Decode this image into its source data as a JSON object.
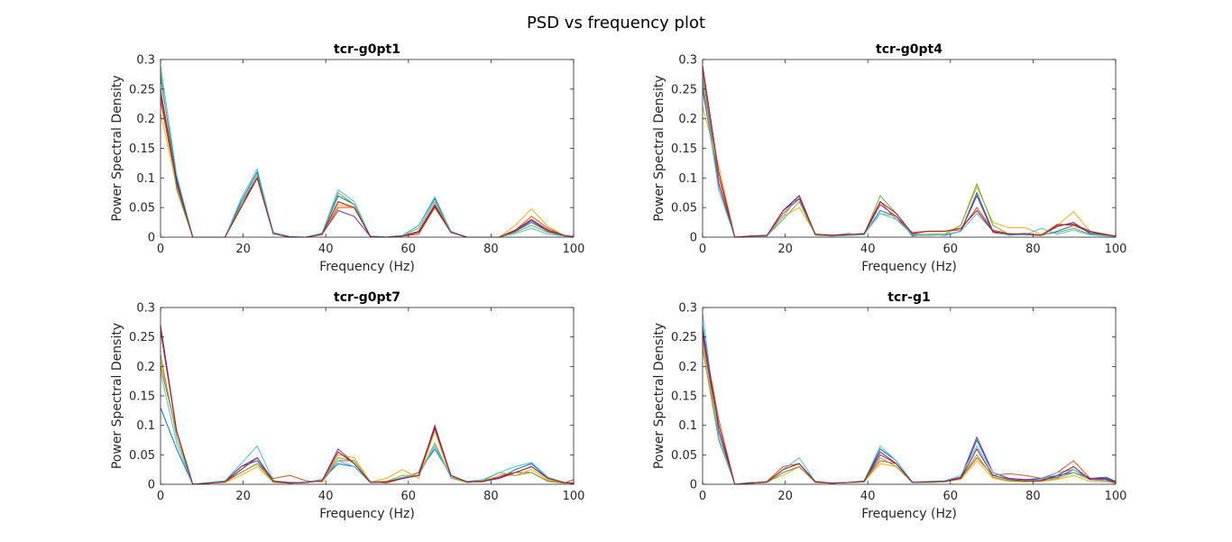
{
  "figure": {
    "title": "PSD vs frequency plot"
  },
  "colors": [
    "#0072BD",
    "#D95319",
    "#EDB120",
    "#7E2F8E",
    "#77AC30",
    "#4DBEEE",
    "#A2142F"
  ],
  "chart_data": [
    {
      "type": "line",
      "title": "tcr-g0pt1",
      "xlabel": "Frequency (Hz)",
      "ylabel": "Power Spectral Density",
      "xlim": [
        0,
        100
      ],
      "ylim": [
        0,
        0.3
      ],
      "xticks": [
        0,
        20,
        40,
        60,
        80,
        100
      ],
      "yticks": [
        0,
        0.05,
        0.1,
        0.15,
        0.2,
        0.25,
        0.3
      ],
      "yticklabels": [
        "0",
        "0.05",
        "0.1",
        "0.15",
        "0.2",
        "0.25",
        "0.3"
      ],
      "grid": false,
      "x": [
        0,
        3.9,
        7.8,
        11.7,
        15.6,
        19.5,
        23.4,
        27.3,
        31.3,
        35.2,
        39.1,
        43.0,
        46.9,
        50.8,
        54.7,
        58.6,
        62.5,
        66.4,
        70.3,
        74.2,
        78.1,
        82.0,
        85.9,
        89.8,
        93.8,
        97.7,
        100
      ],
      "series": [
        {
          "values": [
            0.27,
            0.1,
            0.0,
            0.0,
            0.0,
            0.06,
            0.11,
            0.008,
            0.001,
            0.0,
            0.006,
            0.07,
            0.055,
            0.002,
            0.0,
            0.003,
            0.02,
            0.065,
            0.01,
            0.0,
            0.0,
            0.0,
            0.01,
            0.025,
            0.01,
            0.002,
            0.001
          ]
        },
        {
          "values": [
            0.23,
            0.09,
            0.0,
            0.0,
            0.0,
            0.05,
            0.1,
            0.006,
            0.0,
            0.0,
            0.005,
            0.05,
            0.05,
            0.001,
            0.0,
            0.002,
            0.005,
            0.05,
            0.008,
            0.0,
            0.0,
            0.0,
            0.012,
            0.035,
            0.015,
            0.003,
            0.001
          ]
        },
        {
          "values": [
            0.21,
            0.085,
            0.0,
            0.0,
            0.0,
            0.055,
            0.1,
            0.006,
            0.0,
            0.0,
            0.004,
            0.055,
            0.05,
            0.001,
            0.0,
            0.002,
            0.01,
            0.055,
            0.008,
            0.0,
            0.0,
            0.0,
            0.02,
            0.048,
            0.018,
            0.003,
            0.001
          ]
        },
        {
          "values": [
            0.25,
            0.09,
            0.0,
            0.0,
            0.0,
            0.055,
            0.1,
            0.007,
            0.0,
            0.0,
            0.005,
            0.045,
            0.035,
            0.001,
            0.0,
            0.002,
            0.01,
            0.055,
            0.008,
            0.0,
            0.0,
            0.0,
            0.01,
            0.028,
            0.01,
            0.002,
            0.001
          ]
        },
        {
          "values": [
            0.28,
            0.08,
            0.0,
            0.0,
            0.0,
            0.055,
            0.105,
            0.007,
            0.0,
            0.0,
            0.006,
            0.075,
            0.055,
            0.001,
            0.0,
            0.003,
            0.015,
            0.06,
            0.01,
            0.0,
            0.0,
            0.0,
            0.008,
            0.02,
            0.008,
            0.002,
            0.001
          ]
        },
        {
          "values": [
            0.29,
            0.105,
            0.0,
            0.0,
            0.0,
            0.065,
            0.115,
            0.008,
            0.0,
            0.0,
            0.007,
            0.08,
            0.06,
            0.002,
            0.0,
            0.003,
            0.02,
            0.068,
            0.01,
            0.0,
            0.0,
            0.0,
            0.006,
            0.015,
            0.005,
            0.002,
            0.001
          ]
        },
        {
          "values": [
            0.24,
            0.095,
            0.0,
            0.0,
            0.0,
            0.05,
            0.1,
            0.006,
            0.0,
            0.0,
            0.005,
            0.06,
            0.05,
            0.001,
            0.0,
            0.002,
            0.008,
            0.052,
            0.008,
            0.0,
            0.0,
            0.0,
            0.012,
            0.03,
            0.012,
            0.003,
            0.001
          ]
        }
      ]
    },
    {
      "type": "line",
      "title": "tcr-g0pt4",
      "xlabel": "Frequency (Hz)",
      "ylabel": "Power Spectral Density",
      "xlim": [
        0,
        100
      ],
      "ylim": [
        0,
        0.3
      ],
      "xticks": [
        0,
        20,
        40,
        60,
        80,
        100
      ],
      "yticks": [
        0,
        0.05,
        0.1,
        0.15,
        0.2,
        0.25,
        0.3
      ],
      "yticklabels": [
        "0",
        "0.05",
        "0.1",
        "0.15",
        "0.2",
        "0.25",
        "0.3"
      ],
      "grid": false,
      "x": [
        0,
        3.9,
        7.8,
        11.7,
        15.6,
        19.5,
        23.4,
        27.3,
        31.3,
        35.2,
        39.1,
        43.0,
        46.9,
        50.8,
        54.7,
        58.6,
        62.5,
        66.4,
        70.3,
        74.2,
        78.1,
        82.0,
        85.9,
        89.8,
        93.8,
        97.7,
        100
      ],
      "series": [
        {
          "values": [
            0.27,
            0.09,
            0.0,
            0.002,
            0.002,
            0.045,
            0.07,
            0.004,
            0.003,
            0.006,
            0.004,
            0.045,
            0.035,
            0.002,
            0.005,
            0.003,
            0.01,
            0.075,
            0.01,
            0.005,
            0.006,
            0.003,
            0.01,
            0.02,
            0.008,
            0.004,
            0.002
          ]
        },
        {
          "values": [
            0.28,
            0.1,
            0.0,
            0.002,
            0.003,
            0.04,
            0.065,
            0.005,
            0.004,
            0.004,
            0.005,
            0.06,
            0.03,
            0.008,
            0.01,
            0.01,
            0.012,
            0.05,
            0.012,
            0.006,
            0.005,
            0.004,
            0.022,
            0.02,
            0.01,
            0.005,
            0.002
          ]
        },
        {
          "values": [
            0.22,
            0.12,
            0.0,
            0.002,
            0.003,
            0.035,
            0.05,
            0.006,
            0.003,
            0.005,
            0.006,
            0.04,
            0.035,
            0.004,
            0.005,
            0.006,
            0.02,
            0.085,
            0.025,
            0.016,
            0.016,
            0.005,
            0.02,
            0.043,
            0.01,
            0.004,
            0.002
          ]
        },
        {
          "values": [
            0.25,
            0.09,
            0.0,
            0.002,
            0.003,
            0.045,
            0.065,
            0.004,
            0.003,
            0.004,
            0.005,
            0.055,
            0.035,
            0.005,
            0.004,
            0.004,
            0.01,
            0.07,
            0.008,
            0.004,
            0.004,
            0.003,
            0.018,
            0.025,
            0.006,
            0.003,
            0.001
          ]
        },
        {
          "values": [
            0.26,
            0.08,
            0.0,
            0.002,
            0.002,
            0.03,
            0.06,
            0.003,
            0.002,
            0.003,
            0.004,
            0.07,
            0.04,
            0.003,
            0.003,
            0.004,
            0.02,
            0.09,
            0.02,
            0.005,
            0.004,
            0.004,
            0.008,
            0.015,
            0.005,
            0.003,
            0.001
          ]
        },
        {
          "values": [
            0.27,
            0.08,
            0.0,
            0.002,
            0.002,
            0.035,
            0.07,
            0.004,
            0.002,
            0.003,
            0.004,
            0.04,
            0.03,
            0.004,
            0.004,
            0.004,
            0.01,
            0.04,
            0.01,
            0.003,
            0.004,
            0.015,
            0.005,
            0.012,
            0.004,
            0.002,
            0.001
          ]
        },
        {
          "values": [
            0.29,
            0.11,
            0.0,
            0.002,
            0.003,
            0.045,
            0.07,
            0.005,
            0.003,
            0.004,
            0.006,
            0.06,
            0.04,
            0.006,
            0.01,
            0.01,
            0.015,
            0.045,
            0.01,
            0.005,
            0.006,
            0.003,
            0.02,
            0.022,
            0.01,
            0.004,
            0.002
          ]
        }
      ]
    },
    {
      "type": "line",
      "title": "tcr-g0pt7",
      "xlabel": "Frequency (Hz)",
      "ylabel": "Power Spectral Density",
      "xlim": [
        0,
        100
      ],
      "ylim": [
        0,
        0.3
      ],
      "xticks": [
        0,
        20,
        40,
        60,
        80,
        100
      ],
      "yticks": [
        0,
        0.05,
        0.1,
        0.15,
        0.2,
        0.25,
        0.3
      ],
      "yticklabels": [
        "0",
        "0.05",
        "0.1",
        "0.15",
        "0.2",
        "0.25",
        "0.3"
      ],
      "grid": false,
      "x": [
        0,
        3.9,
        7.8,
        11.7,
        15.6,
        19.5,
        23.4,
        27.3,
        31.3,
        35.2,
        39.1,
        43.0,
        46.9,
        50.8,
        54.7,
        58.6,
        62.5,
        66.4,
        70.3,
        74.2,
        78.1,
        82.0,
        85.9,
        89.8,
        93.8,
        97.7,
        100
      ],
      "series": [
        {
          "values": [
            0.13,
            0.06,
            0.0,
            0.002,
            0.005,
            0.03,
            0.04,
            0.005,
            0.002,
            0.003,
            0.008,
            0.035,
            0.03,
            0.003,
            0.004,
            0.01,
            0.02,
            0.06,
            0.015,
            0.003,
            0.005,
            0.01,
            0.025,
            0.035,
            0.01,
            0.003,
            0.002
          ]
        },
        {
          "values": [
            0.2,
            0.09,
            0.0,
            0.002,
            0.004,
            0.02,
            0.035,
            0.01,
            0.015,
            0.006,
            0.004,
            0.04,
            0.04,
            0.005,
            0.002,
            0.01,
            0.02,
            0.095,
            0.015,
            0.004,
            0.004,
            0.015,
            0.02,
            0.02,
            0.005,
            0.002,
            0.008
          ]
        },
        {
          "values": [
            0.21,
            0.09,
            0.0,
            0.002,
            0.003,
            0.015,
            0.03,
            0.003,
            0.002,
            0.004,
            0.005,
            0.05,
            0.045,
            0.004,
            0.01,
            0.025,
            0.01,
            0.09,
            0.01,
            0.003,
            0.005,
            0.015,
            0.015,
            0.025,
            0.008,
            0.003,
            0.002
          ]
        },
        {
          "values": [
            0.26,
            0.09,
            0.0,
            0.002,
            0.005,
            0.03,
            0.045,
            0.006,
            0.003,
            0.003,
            0.006,
            0.06,
            0.035,
            0.003,
            0.005,
            0.01,
            0.015,
            0.1,
            0.015,
            0.004,
            0.006,
            0.01,
            0.02,
            0.03,
            0.01,
            0.003,
            0.002
          ]
        },
        {
          "values": [
            0.22,
            0.08,
            0.0,
            0.003,
            0.006,
            0.02,
            0.035,
            0.004,
            0.002,
            0.003,
            0.006,
            0.045,
            0.04,
            0.004,
            0.005,
            0.015,
            0.015,
            0.07,
            0.012,
            0.003,
            0.006,
            0.02,
            0.015,
            0.02,
            0.006,
            0.002,
            0.002
          ]
        },
        {
          "values": [
            0.19,
            0.07,
            0.0,
            0.003,
            0.006,
            0.035,
            0.065,
            0.006,
            0.002,
            0.004,
            0.008,
            0.04,
            0.03,
            0.004,
            0.004,
            0.012,
            0.015,
            0.065,
            0.012,
            0.005,
            0.008,
            0.02,
            0.03,
            0.037,
            0.012,
            0.003,
            0.002
          ]
        },
        {
          "values": [
            0.27,
            0.09,
            0.0,
            0.002,
            0.004,
            0.025,
            0.045,
            0.005,
            0.002,
            0.003,
            0.006,
            0.055,
            0.035,
            0.003,
            0.004,
            0.01,
            0.015,
            0.095,
            0.015,
            0.004,
            0.005,
            0.012,
            0.02,
            0.03,
            0.01,
            0.003,
            0.002
          ]
        }
      ]
    },
    {
      "type": "line",
      "title": "tcr-g1",
      "xlabel": "Frequency (Hz)",
      "ylabel": "Power Spectral Density",
      "xlim": [
        0,
        100
      ],
      "ylim": [
        0,
        0.3
      ],
      "xticks": [
        0,
        20,
        40,
        60,
        80,
        100
      ],
      "yticks": [
        0,
        0.05,
        0.1,
        0.15,
        0.2,
        0.25,
        0.3
      ],
      "yticklabels": [
        "0",
        "0.05",
        "0.1",
        "0.15",
        "0.2",
        "0.25",
        "0.3"
      ],
      "grid": false,
      "x": [
        0,
        3.9,
        7.8,
        11.7,
        15.6,
        19.5,
        23.4,
        27.3,
        31.3,
        35.2,
        39.1,
        43.0,
        46.9,
        50.8,
        54.7,
        58.6,
        62.5,
        66.4,
        70.3,
        74.2,
        78.1,
        82.0,
        85.9,
        89.8,
        93.8,
        97.7,
        100
      ],
      "series": [
        {
          "values": [
            0.27,
            0.09,
            0.0,
            0.003,
            0.003,
            0.02,
            0.03,
            0.004,
            0.002,
            0.003,
            0.005,
            0.06,
            0.04,
            0.003,
            0.004,
            0.005,
            0.01,
            0.075,
            0.02,
            0.01,
            0.008,
            0.01,
            0.015,
            0.02,
            0.01,
            0.012,
            0.005
          ]
        },
        {
          "values": [
            0.26,
            0.11,
            0.0,
            0.002,
            0.005,
            0.03,
            0.035,
            0.005,
            0.002,
            0.003,
            0.005,
            0.04,
            0.035,
            0.004,
            0.004,
            0.005,
            0.01,
            0.045,
            0.015,
            0.018,
            0.015,
            0.01,
            0.02,
            0.04,
            0.01,
            0.01,
            0.005
          ]
        },
        {
          "values": [
            0.24,
            0.08,
            0.0,
            0.002,
            0.005,
            0.015,
            0.03,
            0.003,
            0.002,
            0.003,
            0.004,
            0.035,
            0.03,
            0.003,
            0.004,
            0.005,
            0.008,
            0.04,
            0.01,
            0.005,
            0.004,
            0.005,
            0.008,
            0.015,
            0.005,
            0.004,
            0.002
          ]
        },
        {
          "values": [
            0.25,
            0.09,
            0.0,
            0.002,
            0.003,
            0.02,
            0.03,
            0.004,
            0.002,
            0.003,
            0.004,
            0.05,
            0.035,
            0.003,
            0.003,
            0.005,
            0.012,
            0.08,
            0.02,
            0.01,
            0.008,
            0.008,
            0.012,
            0.025,
            0.01,
            0.01,
            0.004
          ]
        },
        {
          "values": [
            0.23,
            0.075,
            0.0,
            0.002,
            0.003,
            0.02,
            0.03,
            0.003,
            0.002,
            0.003,
            0.004,
            0.045,
            0.03,
            0.003,
            0.003,
            0.004,
            0.01,
            0.05,
            0.012,
            0.006,
            0.005,
            0.006,
            0.01,
            0.02,
            0.008,
            0.006,
            0.002
          ]
        },
        {
          "values": [
            0.29,
            0.08,
            0.0,
            0.002,
            0.003,
            0.025,
            0.045,
            0.004,
            0.002,
            0.003,
            0.006,
            0.065,
            0.04,
            0.004,
            0.005,
            0.006,
            0.015,
            0.065,
            0.02,
            0.008,
            0.006,
            0.008,
            0.02,
            0.025,
            0.008,
            0.006,
            0.003
          ]
        },
        {
          "values": [
            0.26,
            0.1,
            0.0,
            0.002,
            0.004,
            0.025,
            0.035,
            0.004,
            0.002,
            0.003,
            0.005,
            0.055,
            0.035,
            0.003,
            0.004,
            0.005,
            0.01,
            0.06,
            0.015,
            0.008,
            0.006,
            0.006,
            0.015,
            0.03,
            0.008,
            0.008,
            0.003
          ]
        }
      ]
    }
  ]
}
